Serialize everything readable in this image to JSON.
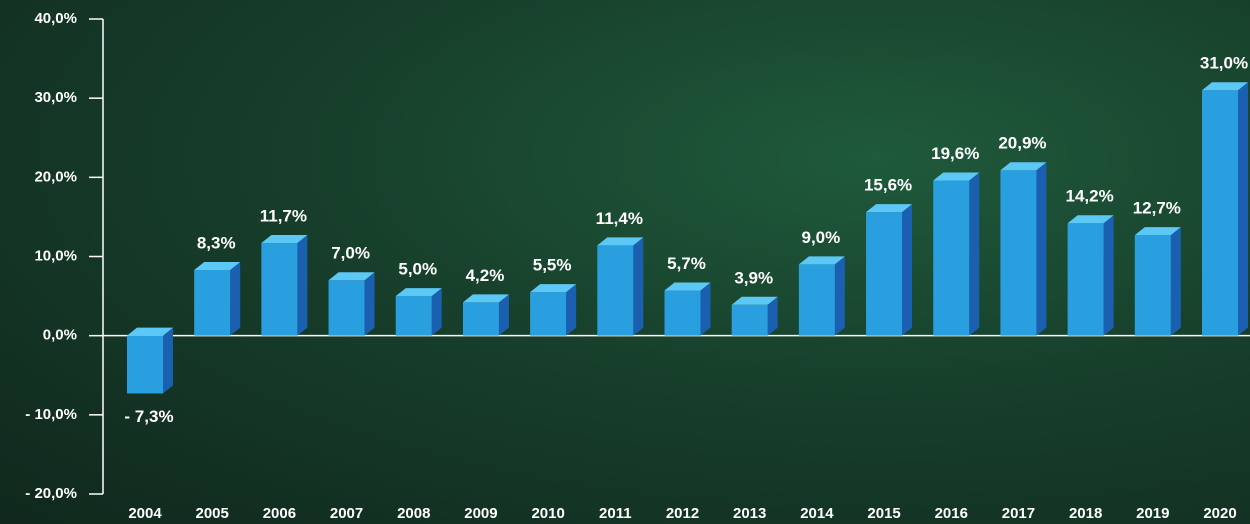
{
  "chart_data": {
    "type": "bar",
    "categories": [
      "2004",
      "2005",
      "2006",
      "2007",
      "2008",
      "2009",
      "2010",
      "2011",
      "2012",
      "2013",
      "2014",
      "2015",
      "2016",
      "2017",
      "2018",
      "2019",
      "2020"
    ],
    "values": [
      -7.3,
      8.3,
      11.7,
      7.0,
      5.0,
      4.2,
      5.5,
      11.4,
      5.7,
      3.9,
      9.0,
      15.6,
      19.6,
      20.9,
      14.2,
      12.7,
      31.0
    ],
    "value_labels": [
      "- 7,3%",
      "8,3%",
      "11,7%",
      "7,0%",
      "5,0%",
      "4,2%",
      "5,5%",
      "11,4%",
      "5,7%",
      "3,9%",
      "9,0%",
      "15,6%",
      "19,6%",
      "20,9%",
      "14,2%",
      "12,7%",
      "31,0%"
    ],
    "color": "#2a9fe0",
    "ylim": [
      -20,
      40
    ],
    "yticks": [
      {
        "value": -20,
        "label": "- 20,0%"
      },
      {
        "value": -10,
        "label": "- 10,0%"
      },
      {
        "value": 0,
        "label": "0,0%"
      },
      {
        "value": 10,
        "label": "10,0%"
      },
      {
        "value": 20,
        "label": "20,0%"
      },
      {
        "value": 30,
        "label": "30,0%"
      },
      {
        "value": 40,
        "label": "40,0%"
      }
    ]
  }
}
